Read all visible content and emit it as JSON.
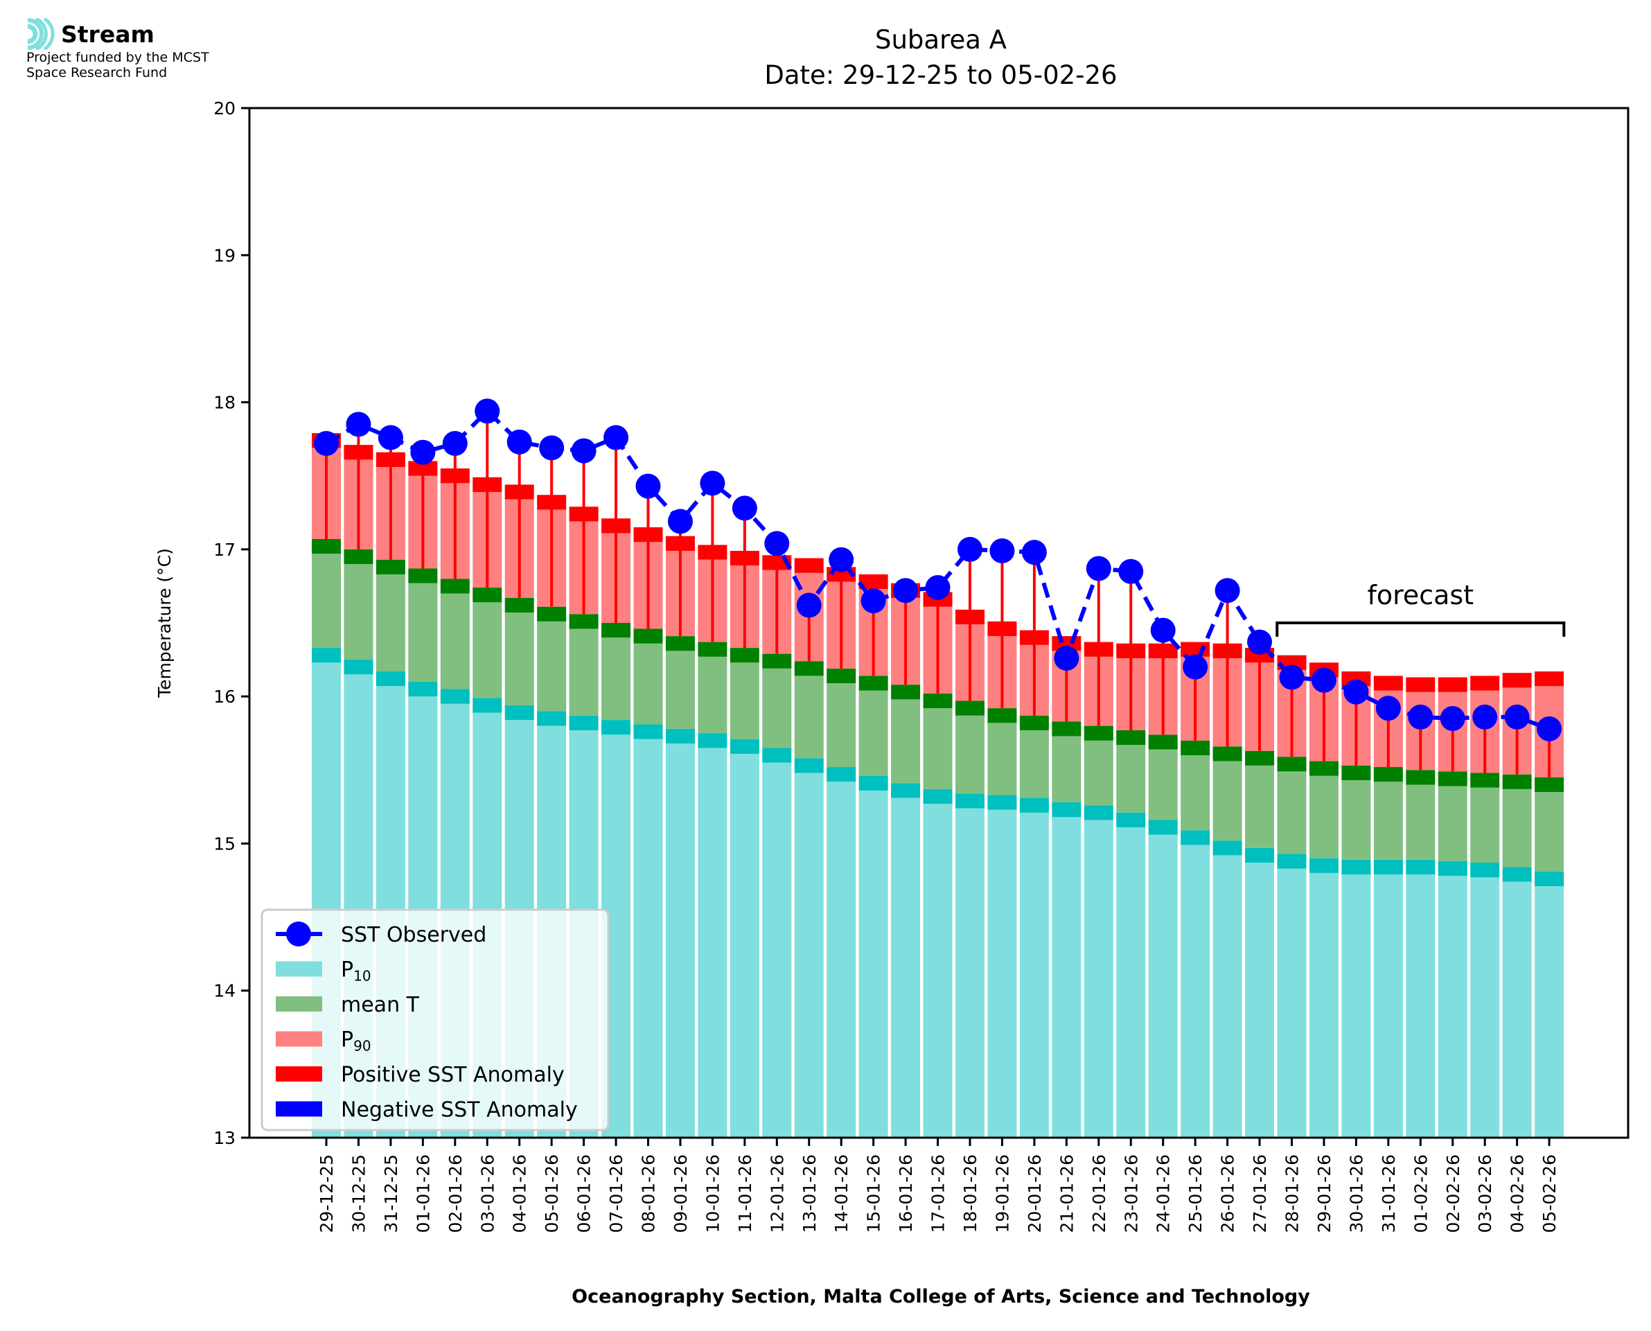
{
  "logo": {
    "name": "Stream",
    "line1": "Project funded by the MCST",
    "line2": "Space Research Fund"
  },
  "colors": {
    "p10": "#80dede",
    "p10_cap": "#00bfbf",
    "mean": "#80bf80",
    "mean_cap": "#008000",
    "p90": "#ff8080",
    "p90_cap": "#ff0000",
    "positive_anomaly": "#ff0000",
    "negative_anomaly": "#0000ff",
    "observed": "#0000ff"
  },
  "chart_data": {
    "type": "bar",
    "title": "Subarea A",
    "subtitle": "Date: 29-12-25 to 05-02-26",
    "xlabel": "Oceanography Section, Malta College of Arts, Science and Technology",
    "ylabel": "Temperature (°C)",
    "ylim": [
      13,
      20
    ],
    "yticks": [
      13,
      14,
      15,
      16,
      17,
      18,
      19,
      20
    ],
    "grid": false,
    "legend_position": "lower-left",
    "legend": [
      "SST Observed",
      "P10",
      "mean T",
      "P90",
      "Positive SST Anomaly",
      "Negative SST Anomaly"
    ],
    "legend_labels": [
      {
        "main": "SST Observed",
        "sub": ""
      },
      {
        "main": "P",
        "sub": "10"
      },
      {
        "main": "mean T",
        "sub": ""
      },
      {
        "main": "P",
        "sub": "90"
      },
      {
        "main": "Positive SST Anomaly",
        "sub": ""
      },
      {
        "main": "Negative SST Anomaly",
        "sub": ""
      }
    ],
    "annotation": {
      "text": "forecast",
      "from": "28-01-26",
      "to": "05-02-26"
    },
    "band_thickness": 0.1,
    "categories": [
      "29-12-25",
      "30-12-25",
      "31-12-25",
      "01-01-26",
      "02-01-26",
      "03-01-26",
      "04-01-26",
      "05-01-26",
      "06-01-26",
      "07-01-26",
      "08-01-26",
      "09-01-26",
      "10-01-26",
      "11-01-26",
      "12-01-26",
      "13-01-26",
      "14-01-26",
      "15-01-26",
      "16-01-26",
      "17-01-26",
      "18-01-26",
      "19-01-26",
      "20-01-26",
      "21-01-26",
      "22-01-26",
      "23-01-26",
      "24-01-26",
      "25-01-26",
      "26-01-26",
      "27-01-26",
      "28-01-26",
      "29-01-26",
      "30-01-26",
      "31-01-26",
      "01-02-26",
      "02-02-26",
      "03-02-26",
      "04-02-26",
      "05-02-26"
    ],
    "series": [
      {
        "name": "SST Observed",
        "values": [
          17.72,
          17.85,
          17.76,
          17.66,
          17.72,
          17.94,
          17.73,
          17.69,
          17.67,
          17.76,
          17.43,
          17.19,
          17.45,
          17.28,
          17.04,
          16.62,
          16.93,
          16.65,
          16.72,
          16.74,
          17.0,
          16.99,
          16.98,
          16.26,
          16.87,
          16.85,
          16.45,
          16.2,
          16.72,
          16.37,
          16.13,
          16.11,
          16.03,
          15.92,
          15.86,
          15.85,
          15.86,
          15.86,
          15.78
        ]
      },
      {
        "name": "P10",
        "values": [
          16.33,
          16.25,
          16.17,
          16.1,
          16.05,
          15.99,
          15.94,
          15.9,
          15.87,
          15.84,
          15.81,
          15.78,
          15.75,
          15.71,
          15.65,
          15.58,
          15.52,
          15.46,
          15.41,
          15.37,
          15.34,
          15.33,
          15.31,
          15.28,
          15.26,
          15.21,
          15.16,
          15.09,
          15.02,
          14.97,
          14.93,
          14.9,
          14.89,
          14.89,
          14.89,
          14.88,
          14.87,
          14.84,
          14.81
        ]
      },
      {
        "name": "mean T",
        "values": [
          17.07,
          17.0,
          16.93,
          16.87,
          16.8,
          16.74,
          16.67,
          16.61,
          16.56,
          16.5,
          16.46,
          16.41,
          16.37,
          16.33,
          16.29,
          16.24,
          16.19,
          16.14,
          16.08,
          16.02,
          15.97,
          15.92,
          15.87,
          15.83,
          15.8,
          15.77,
          15.74,
          15.7,
          15.66,
          15.63,
          15.59,
          15.56,
          15.53,
          15.52,
          15.5,
          15.49,
          15.48,
          15.47,
          15.45
        ]
      },
      {
        "name": "P90",
        "values": [
          17.79,
          17.71,
          17.66,
          17.6,
          17.55,
          17.49,
          17.44,
          17.37,
          17.29,
          17.21,
          17.15,
          17.09,
          17.03,
          16.99,
          16.96,
          16.94,
          16.88,
          16.83,
          16.77,
          16.71,
          16.59,
          16.51,
          16.45,
          16.41,
          16.37,
          16.36,
          16.36,
          16.37,
          16.36,
          16.33,
          16.28,
          16.23,
          16.17,
          16.14,
          16.13,
          16.13,
          16.14,
          16.16,
          16.17
        ]
      }
    ]
  }
}
